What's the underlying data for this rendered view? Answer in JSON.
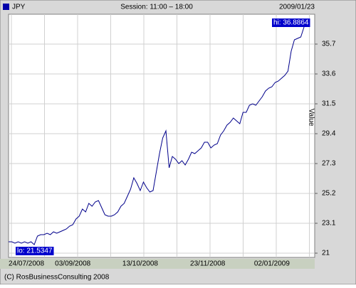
{
  "chart_data": {
    "type": "line",
    "session": "Session: 11:00 – 18:00",
    "date": "2009/01/23",
    "ylabel": "Value",
    "footer": "(C) RosBusinessConsulting 2008",
    "annotations": [
      "hi: 36.8864",
      "lo: 21.5347"
    ],
    "ylim": [
      20.7,
      37.8
    ],
    "yticks": [
      21,
      23.1,
      25.2,
      27.3,
      29.4,
      31.5,
      33.6,
      35.7
    ],
    "grid": true,
    "categories": [
      "24/07/2008",
      null,
      null,
      null,
      null,
      null,
      null,
      null,
      null,
      null,
      null,
      null,
      null,
      null,
      null,
      null,
      null,
      null,
      null,
      null,
      "03/09/2008",
      null,
      null,
      null,
      null,
      null,
      null,
      null,
      null,
      null,
      null,
      null,
      null,
      null,
      null,
      null,
      null,
      null,
      null,
      null,
      null,
      "13/10/2008",
      null,
      null,
      null,
      null,
      null,
      null,
      null,
      null,
      null,
      null,
      null,
      null,
      null,
      null,
      null,
      null,
      null,
      null,
      null,
      null,
      "23/11/2008",
      null,
      null,
      null,
      null,
      null,
      null,
      null,
      null,
      null,
      null,
      null,
      null,
      null,
      null,
      null,
      null,
      null,
      null,
      null,
      "02/01/2009",
      null,
      null,
      null,
      null,
      null,
      null,
      null,
      null,
      null,
      null
    ],
    "series": [
      {
        "name": "JPY",
        "color": "#00008b",
        "values": [
          21.8,
          21.8,
          21.7,
          21.8,
          21.7,
          21.8,
          21.7,
          21.8,
          21.6,
          22.2,
          22.3,
          22.3,
          22.4,
          22.3,
          22.5,
          22.4,
          22.5,
          22.6,
          22.7,
          22.9,
          23.0,
          23.4,
          23.6,
          24.1,
          23.9,
          24.5,
          24.3,
          24.6,
          24.7,
          24.2,
          23.7,
          23.6,
          23.6,
          23.7,
          23.9,
          24.3,
          24.5,
          25.0,
          25.5,
          26.3,
          25.9,
          25.4,
          26.0,
          25.6,
          25.3,
          25.4,
          26.7,
          28.0,
          29.1,
          29.6,
          27.0,
          27.8,
          27.6,
          27.3,
          27.5,
          27.2,
          27.6,
          28.1,
          28.0,
          28.2,
          28.4,
          28.8,
          28.8,
          28.4,
          28.6,
          28.7,
          29.3,
          29.6,
          30.0,
          30.2,
          30.5,
          30.3,
          30.1,
          30.9,
          30.9,
          31.4,
          31.5,
          31.4,
          31.7,
          32.0,
          32.4,
          32.6,
          32.7,
          33.0,
          33.1,
          33.3,
          33.5,
          33.8,
          35.2,
          36.0,
          36.1,
          36.2,
          36.9
        ]
      }
    ]
  }
}
